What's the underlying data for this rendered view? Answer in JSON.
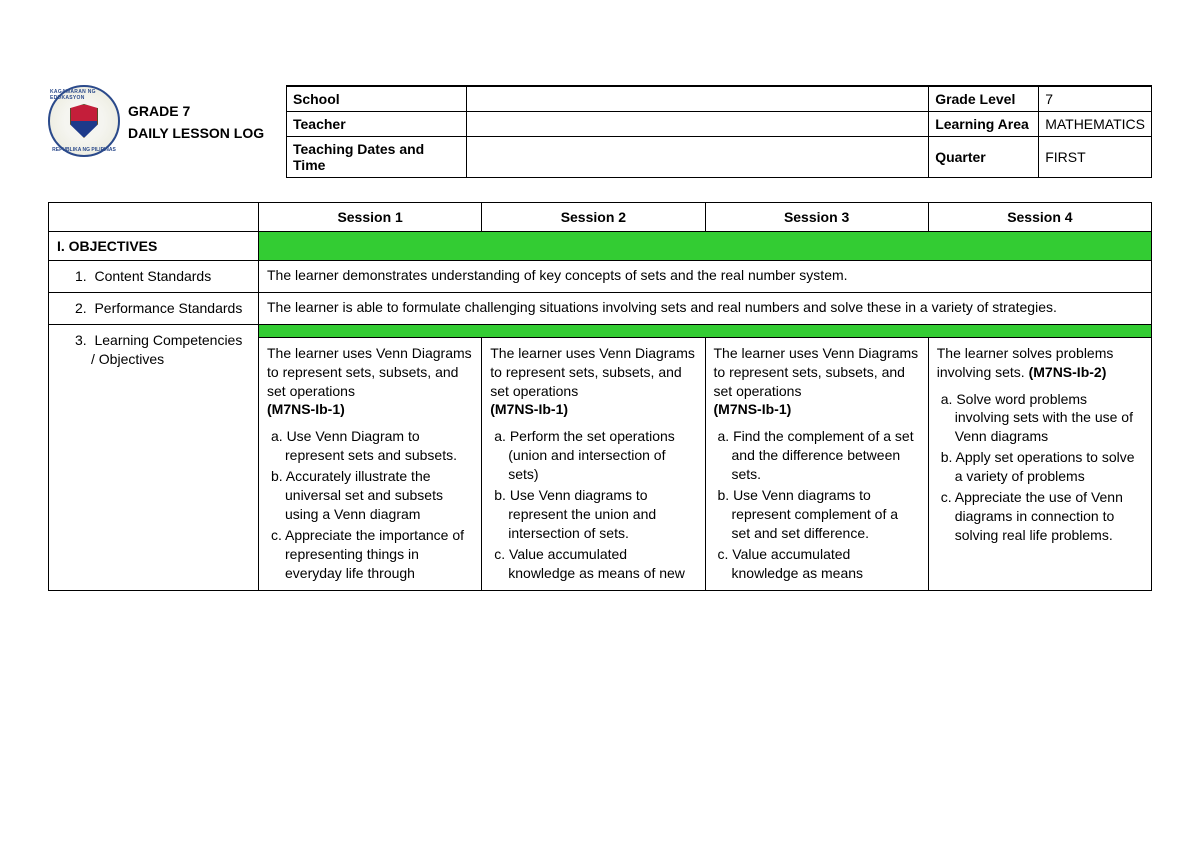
{
  "header": {
    "logo_top": "KAGAWARAN NG EDUKASYON",
    "logo_bottom": "REPUBLIKA NG PILIPINAS",
    "title_line1": "GRADE 7",
    "title_line2": "DAILY LESSON LOG",
    "rows": [
      {
        "label": "School",
        "value": "",
        "rlabel": "Grade Level",
        "rvalue": "7"
      },
      {
        "label": "Teacher",
        "value": "",
        "rlabel": "Learning Area",
        "rvalue": "MATHEMATICS"
      },
      {
        "label": "Teaching Dates and Time",
        "value": "",
        "rlabel": "Quarter",
        "rvalue": "FIRST"
      }
    ]
  },
  "sessions": [
    "Session 1",
    "Session 2",
    "Session 3",
    "Session 4"
  ],
  "objectives": {
    "heading": "I. OBJECTIVES",
    "content_standards": {
      "num": "1.",
      "label": "Content Standards",
      "text": "The learner demonstrates understanding of key concepts of sets and the real number system."
    },
    "performance_standards": {
      "num": "2.",
      "label": "Performance Standards",
      "text": "The learner is able to formulate challenging situations involving sets and real numbers and solve these in a variety of strategies."
    },
    "learning_comp": {
      "num": "3.",
      "label": "Learning Competencies / Objectives",
      "sessions": {
        "s1": {
          "intro": "The learner uses Venn Diagrams to represent sets, subsets, and set operations",
          "code": "(M7NS-Ib-1)",
          "items": [
            "a. Use Venn Diagram to represent sets and subsets.",
            "b. Accurately illustrate the universal set and subsets using a Venn diagram",
            "c. Appreciate the importance of representing things in everyday life through"
          ]
        },
        "s2": {
          "intro": "The learner uses Venn Diagrams to represent sets, subsets, and set operations",
          "code": "(M7NS-Ib-1)",
          "items": [
            "a. Perform the set operations (union and intersection of sets)",
            "b. Use Venn diagrams to represent the union and intersection of sets.",
            "c. Value accumulated knowledge as means of new"
          ]
        },
        "s3": {
          "intro": "The learner uses Venn Diagrams to represent sets, subsets, and set operations",
          "code": "(M7NS-Ib-1)",
          "items": [
            "a. Find the complement of a set and the difference between sets.",
            "b. Use Venn diagrams to represent complement of a set and set difference.",
            "c. Value accumulated knowledge as means"
          ]
        },
        "s4": {
          "intro": "The learner solves problems involving sets.",
          "code": "(M7NS-Ib-2)",
          "items": [
            "a. Solve word problems involving sets with the use of Venn diagrams",
            "b. Apply set operations to solve a variety of problems",
            "c. Appreciate the use of Venn diagrams in connection to solving real life problems."
          ]
        }
      }
    }
  },
  "colors": {
    "green": "#33cc33",
    "border": "#000000",
    "bg": "#ffffff"
  }
}
